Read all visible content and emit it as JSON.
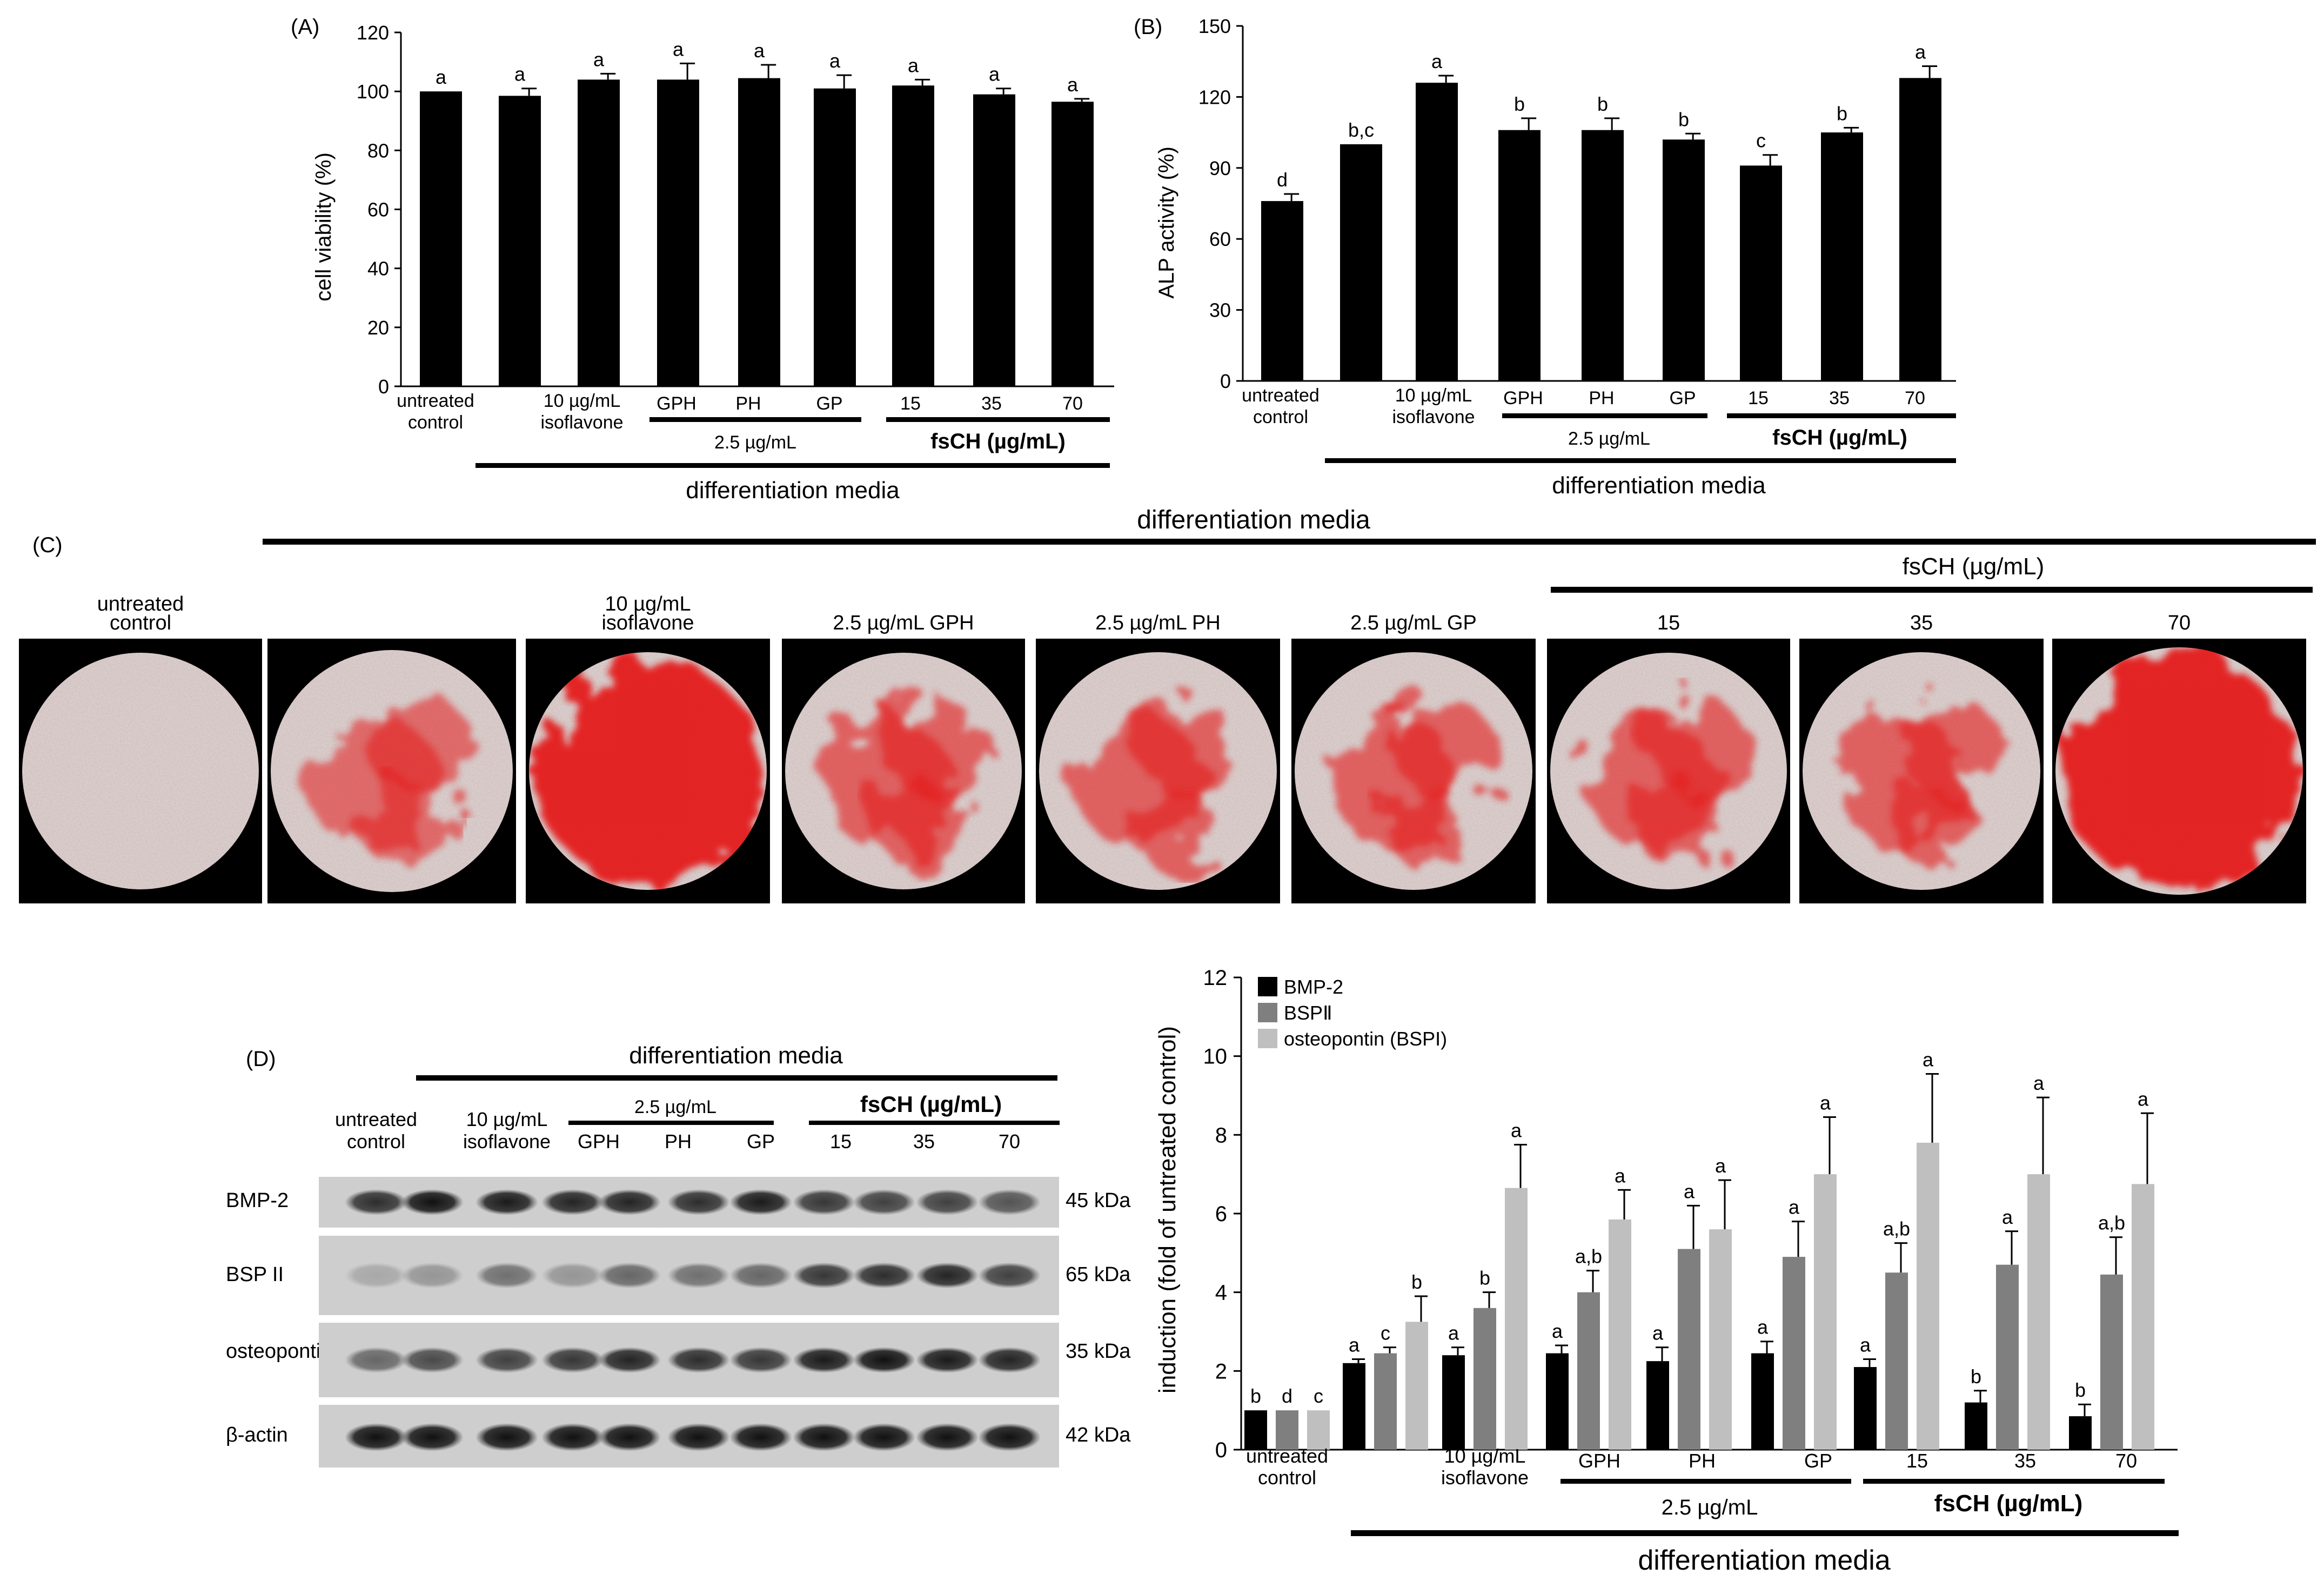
{
  "panel_a": {
    "label": "(A)",
    "chart_data": {
      "type": "bar",
      "ylabel": "cell viability  (%)",
      "ylim": [
        0,
        120
      ],
      "yticks": [
        0,
        20,
        40,
        60,
        80,
        100,
        120
      ],
      "categories": [
        "untreated control",
        "differentiation",
        "10 µg/mL isoflavone",
        "GPH",
        "PH",
        "GP",
        "15",
        "35",
        "70"
      ],
      "values": [
        100,
        98.5,
        104,
        104,
        104.5,
        101,
        102,
        99,
        96.5
      ],
      "errors": [
        0,
        2.5,
        2,
        5.5,
        4.5,
        4.5,
        2,
        2,
        1
      ],
      "letters": [
        "a",
        "a",
        "a",
        "a",
        "a",
        "a",
        "a",
        "a",
        "a"
      ]
    },
    "xlabels": {
      "untreated_1": "untreated",
      "untreated_2": "control",
      "iso_1": "10 µg/mL",
      "iso_2": "isoflavone",
      "gph": "GPH",
      "ph": "PH",
      "gp": "GP",
      "c15": "15",
      "c35": "35",
      "c70": "70",
      "dose": "2.5 µg/mL",
      "fsch": "fsCH (µg/mL)",
      "media": "differentiation media"
    }
  },
  "panel_b": {
    "label": "(B)",
    "chart_data": {
      "type": "bar",
      "ylabel": "ALP activity  (%)",
      "ylim": [
        0,
        150
      ],
      "yticks": [
        0,
        30,
        60,
        90,
        120,
        150
      ],
      "categories": [
        "untreated control",
        "differentiation",
        "10 µg/mL isoflavone",
        "GPH",
        "PH",
        "GP",
        "15",
        "35",
        "70"
      ],
      "values": [
        76,
        100,
        126,
        106,
        106,
        102,
        91,
        105,
        128
      ],
      "errors": [
        3,
        0,
        3,
        5,
        5,
        2.5,
        4.5,
        2,
        5
      ],
      "letters": [
        "d",
        "b,c",
        "a",
        "b",
        "b",
        "b",
        "c",
        "b",
        "a"
      ]
    },
    "xlabels": {
      "untreated_1": "untreated",
      "untreated_2": "control",
      "iso_1": "10 µg/mL",
      "iso_2": "isoflavone",
      "gph": "GPH",
      "ph": "PH",
      "gp": "GP",
      "c15": "15",
      "c35": "35",
      "c70": "70",
      "dose": "2.5 µg/mL",
      "fsch": "fsCH (µg/mL)",
      "media": "differentiation media"
    }
  },
  "panel_c": {
    "label": "(C)",
    "media": "differentiation media",
    "fsch": "fsCH (µg/mL)",
    "wells": [
      {
        "label1": "untreated",
        "label2": "control",
        "stain": "none"
      },
      {
        "label1": "",
        "label2": "",
        "stain": "differentiation"
      },
      {
        "label1": "10 µg/mL",
        "label2": "isoflavone",
        "stain": "heavy"
      },
      {
        "label1": "",
        "label2": "2.5 µg/mL GPH",
        "stain": "moderate"
      },
      {
        "label1": "",
        "label2": "2.5 µg/mL PH",
        "stain": "moderate"
      },
      {
        "label1": "",
        "label2": "2.5 µg/mL GP",
        "stain": "moderate"
      },
      {
        "label1": "",
        "label2": "15",
        "stain": "moderate"
      },
      {
        "label1": "",
        "label2": "35",
        "stain": "moderate"
      },
      {
        "label1": "",
        "label2": "70",
        "stain": "heavy"
      }
    ]
  },
  "panel_d": {
    "label": "(D)",
    "media": "differentiation media",
    "dose": "2.5 µg/mL",
    "fsch": "fsCH (µg/mL)",
    "columns": {
      "untreated_1": "untreated",
      "untreated_2": "control",
      "iso_1": "10 µg/mL",
      "iso_2": "isoflavone",
      "gph": "GPH",
      "ph": "PH",
      "gp": "GP",
      "c15": "15",
      "c35": "35",
      "c70": "70"
    },
    "blots": [
      {
        "protein": "BMP-2",
        "size": "45 kDa"
      },
      {
        "protein": "BSP II",
        "size": "65 kDa"
      },
      {
        "protein": "osteopontin",
        "size": "35 kDa"
      },
      {
        "protein": "β-actin",
        "size": "42 kDa"
      }
    ]
  },
  "panel_e": {
    "chart_data": {
      "type": "bar",
      "ylabel": "induction (fold of untreated control)",
      "ylim": [
        0,
        12
      ],
      "yticks": [
        0,
        2,
        4,
        6,
        8,
        10,
        12
      ],
      "categories": [
        "untreated control",
        "differentiation",
        "10 µg/mL isoflavone",
        "GPH",
        "PH",
        "GP",
        "15",
        "35",
        "70"
      ],
      "series": [
        {
          "name": "BMP-2",
          "color": "#000000",
          "values": [
            1,
            2.2,
            2.4,
            2.45,
            2.25,
            2.45,
            2.1,
            1.2,
            0.85
          ],
          "errors": [
            0,
            0.1,
            0.2,
            0.2,
            0.35,
            0.3,
            0.2,
            0.3,
            0.3
          ],
          "letters": [
            "b",
            "a",
            "a",
            "a",
            "a",
            "a",
            "a",
            "b",
            "b"
          ]
        },
        {
          "name": "BSPⅡ",
          "color": "#7f7f7f",
          "values": [
            1,
            2.45,
            3.6,
            4.0,
            5.1,
            4.9,
            4.5,
            4.7,
            4.45
          ],
          "errors": [
            0,
            0.15,
            0.4,
            0.55,
            1.1,
            0.9,
            0.75,
            0.85,
            0.95
          ],
          "letters": [
            "d",
            "c",
            "b",
            "a,b",
            "a",
            "a",
            "a,b",
            "a",
            "a,b"
          ]
        },
        {
          "name": "osteopontin (BSPI)",
          "color": "#bfbfbf",
          "values": [
            1,
            3.25,
            6.65,
            5.85,
            5.6,
            7.0,
            7.8,
            7.0,
            6.75
          ],
          "errors": [
            0,
            0.65,
            1.1,
            0.75,
            1.25,
            1.45,
            1.75,
            1.95,
            1.8
          ],
          "letters": [
            "c",
            "b",
            "a",
            "a",
            "a",
            "a",
            "a",
            "a",
            "a"
          ]
        }
      ]
    },
    "xlabels": {
      "untreated_1": "untreated",
      "untreated_2": "control",
      "iso_1": "10 µg/mL",
      "iso_2": "isoflavone",
      "gph": "GPH",
      "ph": "PH",
      "gp": "GP",
      "c15": "15",
      "c35": "35",
      "c70": "70",
      "dose": "2.5 µg/mL",
      "fsch": "fsCH (µg/mL)",
      "media": "differentiation media"
    }
  }
}
